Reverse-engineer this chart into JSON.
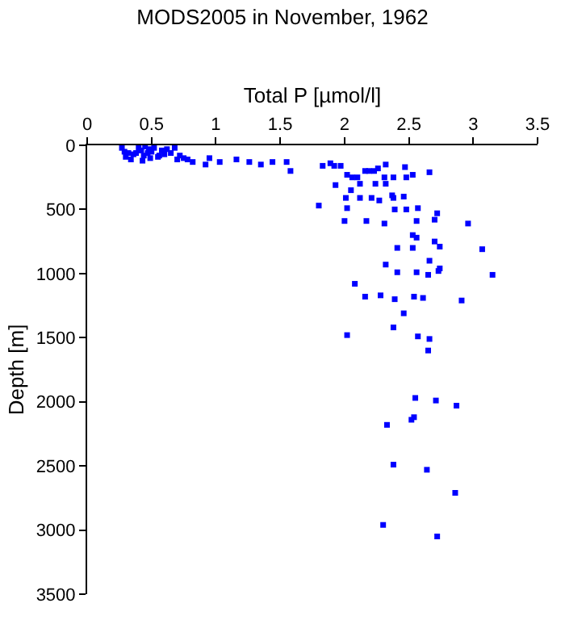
{
  "chart_data": {
    "type": "scatter",
    "title": "MODS2005 in November, 1962",
    "xlabel": "Total P [µmol/l]",
    "ylabel": "Depth [m]",
    "x": [
      0.27,
      0.29,
      0.32,
      0.36,
      0.4,
      0.42,
      0.44,
      0.45,
      0.47,
      0.48,
      0.5,
      0.52,
      0.55,
      0.58,
      0.6,
      0.62,
      0.65,
      0.68,
      0.7,
      0.72,
      0.75,
      0.78,
      0.82,
      0.3,
      0.34,
      0.38,
      0.43,
      0.49,
      0.56,
      0.92,
      0.95,
      1.03,
      1.16,
      1.26,
      1.35,
      1.44,
      1.55,
      1.58,
      1.83,
      1.89,
      1.92,
      1.97,
      2.02,
      2.06,
      2.1,
      1.93,
      2.05,
      2.12,
      2.16,
      2.19,
      2.23,
      2.26,
      2.32,
      2.31,
      2.38,
      2.24,
      2.32,
      2.47,
      2.53,
      2.48,
      2.66,
      2.01,
      2.12,
      2.21,
      2.27,
      2.37,
      2.38,
      2.46,
      1.8,
      2.02,
      2.39,
      2.48,
      2.57,
      2.72,
      2.0,
      2.17,
      2.31,
      2.56,
      2.7,
      2.96,
      2.53,
      2.56,
      2.7,
      2.41,
      2.53,
      2.74,
      3.07,
      2.32,
      2.66,
      2.74,
      2.41,
      2.56,
      2.65,
      2.73,
      3.15,
      2.08,
      2.16,
      2.28,
      2.39,
      2.54,
      2.61,
      2.91,
      2.46,
      2.38,
      2.02,
      2.57,
      2.66,
      2.65,
      2.55,
      2.71,
      2.87,
      2.33,
      2.54,
      2.52,
      2.38,
      2.64,
      2.86,
      2.3,
      2.72
    ],
    "values": [
      20,
      50,
      60,
      70,
      20,
      40,
      80,
      10,
      60,
      30,
      50,
      20,
      90,
      40,
      70,
      30,
      60,
      20,
      110,
      80,
      100,
      110,
      130,
      90,
      110,
      60,
      120,
      100,
      80,
      150,
      100,
      130,
      110,
      130,
      150,
      130,
      130,
      200,
      160,
      140,
      160,
      160,
      230,
      250,
      250,
      310,
      350,
      300,
      200,
      200,
      200,
      180,
      150,
      250,
      250,
      300,
      300,
      170,
      230,
      250,
      210,
      410,
      410,
      410,
      430,
      390,
      410,
      400,
      470,
      490,
      500,
      500,
      490,
      530,
      590,
      590,
      610,
      590,
      580,
      610,
      700,
      720,
      750,
      800,
      800,
      790,
      810,
      930,
      900,
      960,
      990,
      990,
      1010,
      980,
      1010,
      1080,
      1180,
      1170,
      1200,
      1180,
      1190,
      1210,
      1310,
      1420,
      1480,
      1490,
      1510,
      1600,
      1970,
      1990,
      2030,
      2180,
      2120,
      2140,
      2490,
      2530,
      2710,
      2960,
      3050
    ],
    "color": "#0000ff",
    "marker": "square",
    "xlim": [
      0,
      3.5
    ],
    "xticks": [
      0,
      0.5,
      1,
      1.5,
      2,
      2.5,
      3,
      3.5
    ],
    "ylim": [
      3500,
      0
    ],
    "yticks": [
      0,
      500,
      1000,
      1500,
      2000,
      2500,
      3000,
      3500
    ]
  }
}
